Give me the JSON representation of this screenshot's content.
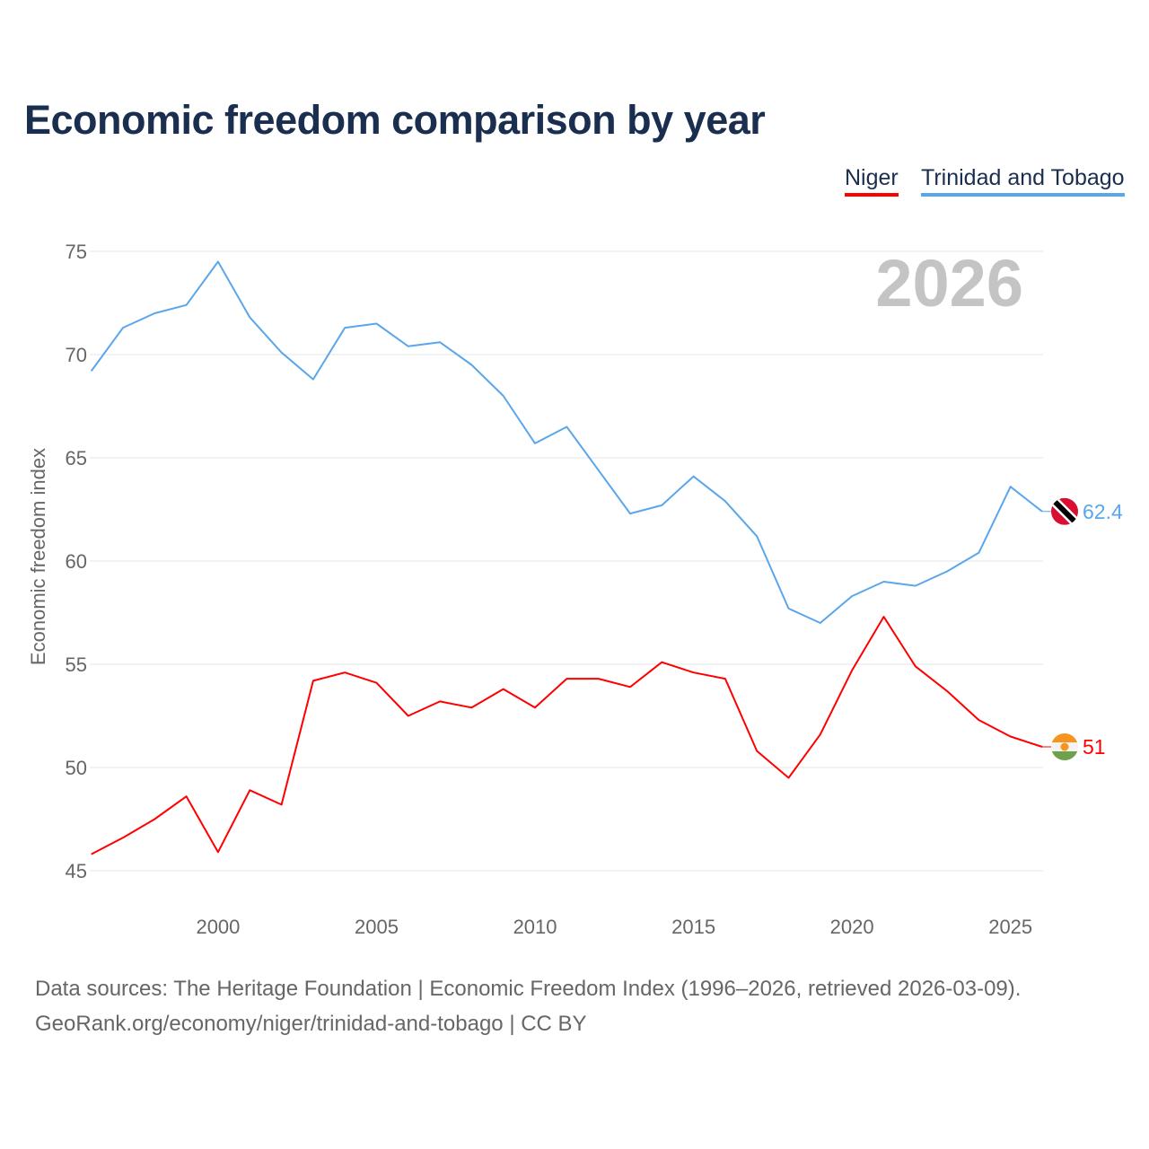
{
  "chart_data": {
    "type": "line",
    "title": "Economic freedom comparison by year",
    "xlabel": "",
    "ylabel": "Economic freedom index",
    "xlim": [
      1996,
      2026
    ],
    "ylim": [
      45,
      75
    ],
    "yticks": [
      45,
      50,
      55,
      60,
      65,
      70,
      75
    ],
    "xticks": [
      2000,
      2005,
      2010,
      2015,
      2020,
      2025
    ],
    "grid": true,
    "legend_position": "top-right",
    "year_watermark": "2026",
    "x": [
      1996,
      1997,
      1998,
      1999,
      2000,
      2001,
      2002,
      2003,
      2004,
      2005,
      2006,
      2007,
      2008,
      2009,
      2010,
      2011,
      2012,
      2013,
      2014,
      2015,
      2016,
      2017,
      2018,
      2019,
      2020,
      2021,
      2022,
      2023,
      2024,
      2025,
      2026
    ],
    "series": [
      {
        "name": "Niger",
        "color": "#ff0000",
        "end_label": "51",
        "values": [
          45.8,
          46.6,
          47.5,
          48.6,
          45.9,
          48.9,
          48.2,
          54.2,
          54.6,
          54.1,
          52.5,
          53.2,
          52.9,
          53.8,
          52.9,
          54.3,
          54.3,
          53.9,
          55.1,
          54.6,
          54.3,
          50.8,
          49.5,
          51.6,
          54.7,
          57.3,
          54.9,
          53.7,
          52.3,
          51.5,
          51.0
        ]
      },
      {
        "name": "Trinidad and Tobago",
        "color": "#5aa6eb",
        "end_label": "62.4",
        "values": [
          69.2,
          71.3,
          72.0,
          72.4,
          74.5,
          71.8,
          70.1,
          68.8,
          71.3,
          71.5,
          70.4,
          70.6,
          69.5,
          68.0,
          65.7,
          66.5,
          64.4,
          62.3,
          62.7,
          64.1,
          62.9,
          61.2,
          57.7,
          57.0,
          58.3,
          59.0,
          58.8,
          59.5,
          60.4,
          63.6,
          62.4
        ]
      }
    ]
  },
  "footer": {
    "line1": "Data sources: The Heritage Foundation | Economic Freedom Index (1996–2026, retrieved 2026-03-09).",
    "line2": "GeoRank.org/economy/niger/trinidad-and-tobago | CC BY"
  }
}
